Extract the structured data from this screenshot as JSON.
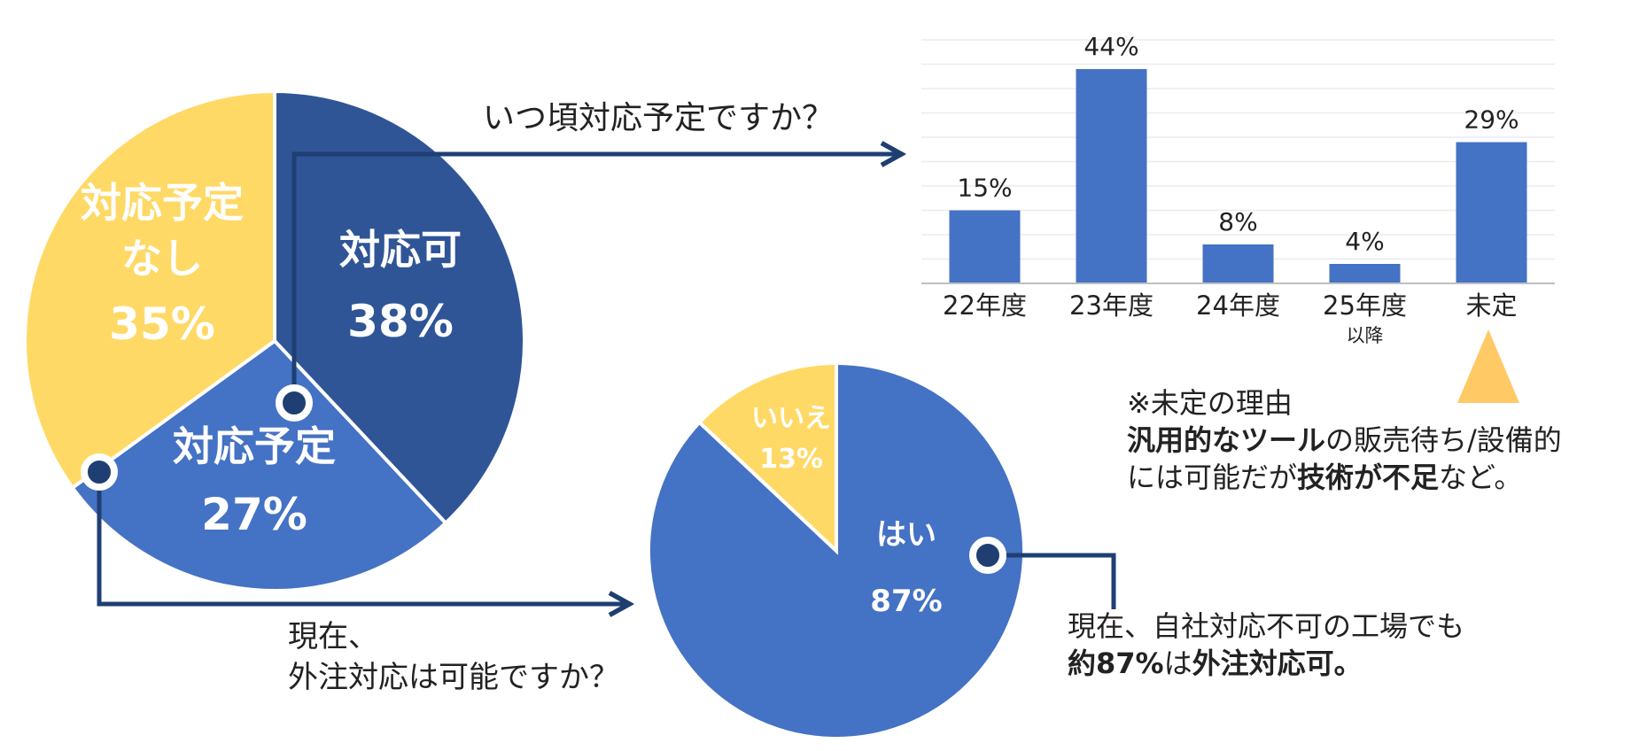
{
  "colors": {
    "dark_blue": "#2F5597",
    "mid_blue": "#4472C4",
    "yellow": "#FFD966",
    "arrow": "#1F3F73",
    "text": "#222222"
  },
  "chart_data": [
    {
      "type": "pie",
      "slices": [
        {
          "label": "対応可",
          "value": 38,
          "value_label": "38%",
          "color": "#2F5597"
        },
        {
          "label": "対応予定",
          "value": 27,
          "value_label": "27%",
          "color": "#4472C4"
        },
        {
          "label": "対応予定\nなし",
          "value": 35,
          "value_label": "35%",
          "color": "#FFD966"
        }
      ]
    },
    {
      "type": "bar",
      "title": "いつ頃対応予定ですか？",
      "categories": [
        "22年度",
        "23年度",
        "24年度",
        "25年度",
        "未定"
      ],
      "category_sublabels": [
        "",
        "",
        "",
        "以降",
        ""
      ],
      "values": [
        15,
        44,
        8,
        4,
        29
      ],
      "value_labels": [
        "15%",
        "44%",
        "8%",
        "4%",
        "29%"
      ],
      "ylim": [
        0,
        50
      ],
      "grid": true,
      "color": "#4472C4"
    },
    {
      "type": "pie",
      "title": "現在、\n外注対応は可能ですか？",
      "slices": [
        {
          "label": "はい",
          "value": 87,
          "value_label": "87%",
          "color": "#4472C4"
        },
        {
          "label": "いいえ",
          "value": 13,
          "value_label": "13%",
          "color": "#FFD966"
        }
      ]
    }
  ],
  "annotations": {
    "undecided_reason_title": "※未定の理由",
    "undecided_reason_line1_bold": "汎用的なツール",
    "undecided_reason_line1_rest": "の販売待ち/設備的",
    "undecided_reason_line2_a": "には可能だが",
    "undecided_reason_line2_bold": "技術が不足",
    "undecided_reason_line2_b": "など。",
    "outsourcing_line1": "現在、自社対応不可の工場でも",
    "outsourcing_line2_bold_a": "約87%",
    "outsourcing_line2_mid": "は",
    "outsourcing_line2_bold_b": "外注対応可。"
  }
}
